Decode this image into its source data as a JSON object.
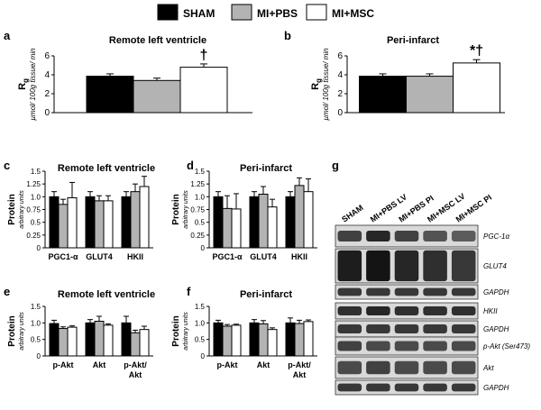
{
  "legend": [
    {
      "label": "SHAM",
      "color": "#000000"
    },
    {
      "label": "MI+PBS",
      "color": "#b3b3b3"
    },
    {
      "label": "MI+MSC",
      "color": "#ffffff"
    }
  ],
  "chart_data": [
    {
      "panel": "a",
      "type": "bar",
      "title": "Remote left ventricle",
      "ylabel": "R_g",
      "ylabel_sub": "g",
      "ylabel_unit": "µmol/ 100g tissue/ min",
      "ylim": [
        0,
        6
      ],
      "yticks": [
        0,
        2,
        4,
        6
      ],
      "yticklabels": [
        "0",
        "2",
        "4",
        "6"
      ],
      "categories": [
        ""
      ],
      "series": [
        {
          "name": "SHAM",
          "values": [
            3.85
          ],
          "errors": [
            0.25
          ]
        },
        {
          "name": "MI+PBS",
          "values": [
            3.4
          ],
          "errors": [
            0.25
          ]
        },
        {
          "name": "MI+MSC",
          "values": [
            4.8
          ],
          "errors": [
            0.35
          ]
        }
      ],
      "annotations": [
        {
          "series": 2,
          "category": 0,
          "text": "†"
        }
      ]
    },
    {
      "panel": "b",
      "type": "bar",
      "title": "Peri-infarct",
      "ylabel": "R_g",
      "ylabel_sub": "g",
      "ylabel_unit": "µmol/ 100g tissue/ min",
      "ylim": [
        0,
        6
      ],
      "yticks": [
        0,
        2,
        4,
        6
      ],
      "yticklabels": [
        "0",
        "2",
        "4",
        "6"
      ],
      "categories": [
        ""
      ],
      "series": [
        {
          "name": "SHAM",
          "values": [
            3.85
          ],
          "errors": [
            0.25
          ]
        },
        {
          "name": "MI+PBS",
          "values": [
            3.85
          ],
          "errors": [
            0.25
          ]
        },
        {
          "name": "MI+MSC",
          "values": [
            5.25
          ],
          "errors": [
            0.35
          ]
        }
      ],
      "annotations": [
        {
          "series": 2,
          "category": 0,
          "text": "*†"
        }
      ]
    },
    {
      "panel": "c",
      "type": "bar",
      "title": "Remote left ventricle",
      "ylabel": "Protein",
      "ylabel_unit": "arbitrary units",
      "ylim": [
        0,
        1.5
      ],
      "yticks": [
        0,
        0.25,
        0.5,
        0.75,
        1.0,
        1.25,
        1.5
      ],
      "yticklabels": [
        "0",
        "0.25",
        "0.5",
        "0.75",
        "1.0",
        "1.25",
        "1.5"
      ],
      "categories": [
        "PGC1-α",
        "GLUT4",
        "HKII"
      ],
      "series": [
        {
          "name": "SHAM",
          "values": [
            1.0,
            1.0,
            1.0
          ],
          "errors": [
            0.1,
            0.1,
            0.1
          ]
        },
        {
          "name": "MI+PBS",
          "values": [
            0.85,
            0.92,
            1.1
          ],
          "errors": [
            0.1,
            0.1,
            0.15
          ]
        },
        {
          "name": "MI+MSC",
          "values": [
            0.98,
            0.92,
            1.2
          ],
          "errors": [
            0.3,
            0.1,
            0.2
          ]
        }
      ]
    },
    {
      "panel": "d",
      "type": "bar",
      "title": "Peri-infarct",
      "ylabel": "Protein",
      "ylabel_unit": "arbitrary units",
      "ylim": [
        0,
        1.5
      ],
      "yticks": [
        0,
        0.25,
        0.5,
        0.75,
        1.0,
        1.25,
        1.5
      ],
      "yticklabels": [
        "0",
        "0.25",
        "0.5",
        "0.75",
        "1.0",
        "1.25",
        "1.5"
      ],
      "categories": [
        "PGC1-α",
        "GLUT4",
        "HKII"
      ],
      "series": [
        {
          "name": "SHAM",
          "values": [
            1.0,
            1.0,
            1.0
          ],
          "errors": [
            0.1,
            0.1,
            0.1
          ]
        },
        {
          "name": "MI+PBS",
          "values": [
            0.77,
            1.05,
            1.22
          ],
          "errors": [
            0.25,
            0.15,
            0.15
          ]
        },
        {
          "name": "MI+MSC",
          "values": [
            0.76,
            0.8,
            1.1
          ],
          "errors": [
            0.3,
            0.15,
            0.25
          ]
        }
      ]
    },
    {
      "panel": "e",
      "type": "bar",
      "title": "Remote left ventricle",
      "ylabel": "Protein",
      "ylabel_unit": "arbitrary units",
      "ylim": [
        0,
        1.5
      ],
      "yticks": [
        0,
        0.5,
        1.0,
        1.5
      ],
      "yticklabels": [
        "0",
        "0.5",
        "1.0",
        "1.5"
      ],
      "categories": [
        "p-Akt",
        "Akt",
        "p-Akt/ Akt"
      ],
      "series": [
        {
          "name": "SHAM",
          "values": [
            0.98,
            1.0,
            1.0
          ],
          "errors": [
            0.1,
            0.1,
            0.2
          ]
        },
        {
          "name": "MI+PBS",
          "values": [
            0.83,
            1.05,
            0.7
          ],
          "errors": [
            0.05,
            0.15,
            0.08
          ]
        },
        {
          "name": "MI+MSC",
          "values": [
            0.87,
            0.93,
            0.8
          ],
          "errors": [
            0.04,
            0.04,
            0.1
          ]
        }
      ]
    },
    {
      "panel": "f",
      "type": "bar",
      "title": "Peri-infarct",
      "ylabel": "Protein",
      "ylabel_unit": "arbitrary units",
      "ylim": [
        0,
        1.5
      ],
      "yticks": [
        0,
        0.5,
        1.0,
        1.5
      ],
      "yticklabels": [
        "0",
        "0.5",
        "1.0",
        "1.5"
      ],
      "categories": [
        "p-Akt",
        "Akt",
        "p-Akt/ Akt"
      ],
      "series": [
        {
          "name": "SHAM",
          "values": [
            1.0,
            1.0,
            1.0
          ],
          "errors": [
            0.08,
            0.1,
            0.15
          ]
        },
        {
          "name": "MI+PBS",
          "values": [
            0.9,
            0.97,
            0.98
          ],
          "errors": [
            0.05,
            0.1,
            0.1
          ]
        },
        {
          "name": "MI+MSC",
          "values": [
            0.93,
            0.8,
            1.04
          ],
          "errors": [
            0.03,
            0.05,
            0.05
          ]
        }
      ]
    }
  ],
  "blot": {
    "panel": "g",
    "lanes": [
      "SHAM",
      "MI+PBS LV",
      "MI+PBS PI",
      "MI+MSC LV",
      "MI+MSC PI"
    ],
    "bands": [
      {
        "label": "PGC-1α",
        "intensity": [
          0.75,
          0.9,
          0.75,
          0.65,
          0.6
        ],
        "height": 0.5
      },
      {
        "label": "GLUT4",
        "intensity": [
          0.95,
          1.0,
          0.9,
          0.85,
          0.8
        ],
        "height": 0.9
      },
      {
        "label": "GAPDH",
        "intensity": [
          0.8,
          0.8,
          0.8,
          0.8,
          0.8
        ],
        "height": 0.55
      },
      {
        "label": "HKII",
        "intensity": [
          0.85,
          0.9,
          0.85,
          0.85,
          0.85
        ],
        "height": 0.55
      },
      {
        "label": "GAPDH",
        "intensity": [
          0.8,
          0.8,
          0.8,
          0.8,
          0.8
        ],
        "height": 0.55
      },
      {
        "label": "p-Akt (Ser473)",
        "intensity": [
          0.75,
          0.7,
          0.7,
          0.7,
          0.7
        ],
        "height": 0.55
      },
      {
        "label": "Akt",
        "intensity": [
          0.7,
          0.75,
          0.7,
          0.7,
          0.7
        ],
        "height": 0.6
      },
      {
        "label": "GAPDH",
        "intensity": [
          0.8,
          0.8,
          0.8,
          0.8,
          0.8
        ],
        "height": 0.55
      }
    ]
  }
}
